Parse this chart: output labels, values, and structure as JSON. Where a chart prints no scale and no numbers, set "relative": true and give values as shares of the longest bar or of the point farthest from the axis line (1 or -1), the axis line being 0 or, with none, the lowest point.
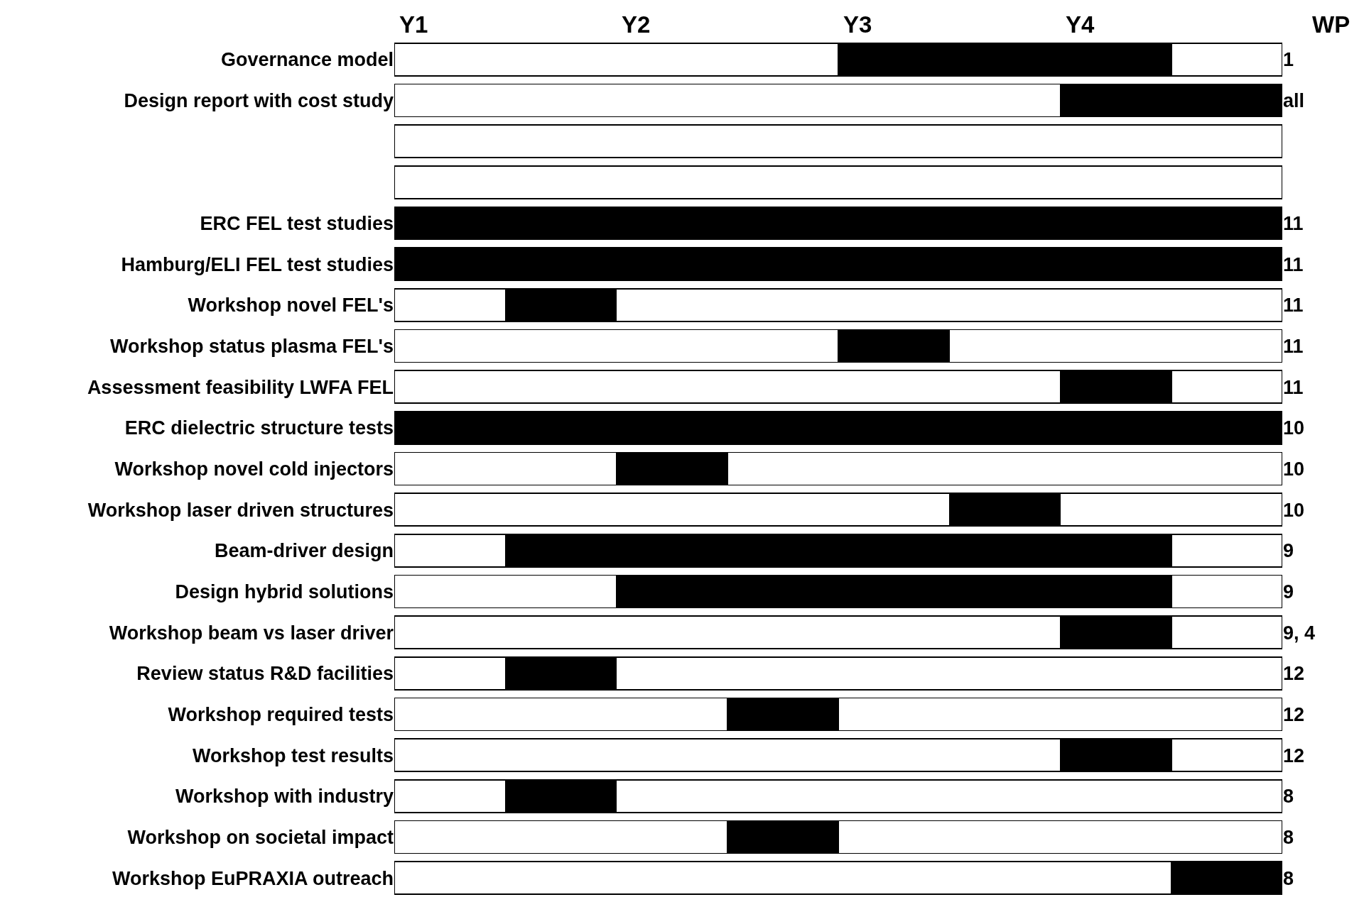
{
  "chart_data": {
    "type": "bar",
    "orientation": "horizontal",
    "stacked": true,
    "relative": true,
    "categories": [
      "Governance model",
      "Design report with cost study",
      null,
      null,
      "ERC FEL test studies",
      "Hamburg/ELI FEL test studies",
      "Workshop novel FEL's",
      "Workshop status plasma FEL's",
      "Assessment feasibility LWFA FEL",
      "ERC dielectric structure tests",
      "Workshop novel cold injectors",
      "Workshop laser driven structures",
      "Beam-driver design",
      "Design hybrid solutions",
      "Workshop beam vs laser driver",
      "Review status R&D facilities",
      "Workshop required tests",
      "Workshop test results",
      "Workshop with industry",
      "Workshop on societal impact",
      "Workshop EuPRAXIA outreach"
    ],
    "y2label": "WP",
    "y2_categories": [
      "1",
      "all",
      null,
      null,
      "11",
      "11",
      "11",
      "11",
      "11",
      "10",
      "10",
      "10",
      "9",
      "9",
      "9, 4",
      "12",
      "12",
      "12",
      "8",
      "8",
      "8"
    ],
    "annotations": [
      "Y1",
      "Y2",
      "Y3",
      "Y4"
    ],
    "series": [
      {
        "color": "#ffffff",
        "values": [
          0.5,
          0.75,
          1,
          1,
          0,
          0,
          0.125,
          0.5,
          0.75,
          0,
          0.25,
          0.625,
          0.125,
          0.25,
          0.75,
          0.125,
          0.375,
          0.75,
          0.125,
          0.375,
          0.875
        ]
      },
      {
        "color": "#000000",
        "values": [
          0.375,
          0.25,
          0,
          0,
          1,
          1,
          0.125,
          0.125,
          0.125,
          1,
          0.125,
          0.125,
          0.75,
          0.625,
          0.125,
          0.125,
          0.125,
          0.125,
          0.125,
          0.125,
          0.125
        ]
      },
      {
        "color": "#ffffff",
        "values": [
          0.125,
          0,
          0,
          0,
          0,
          0,
          0.75,
          0.375,
          0.125,
          0,
          0.625,
          0.25,
          0.125,
          0.125,
          0.125,
          0.75,
          0.5,
          0.125,
          0.75,
          0.5,
          0
        ]
      }
    ]
  }
}
